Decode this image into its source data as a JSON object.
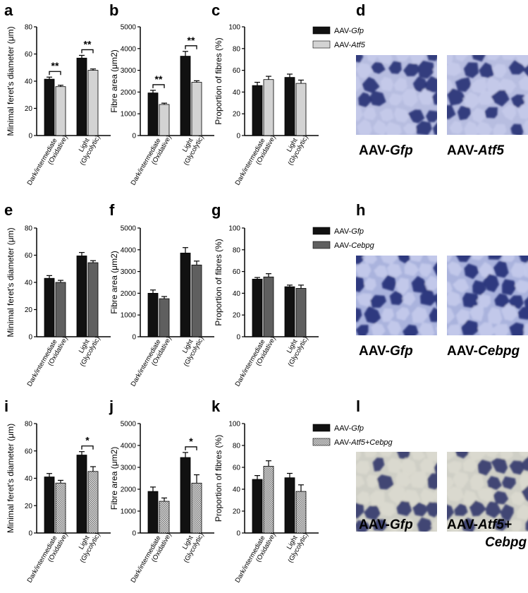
{
  "panel_letters": [
    "a",
    "b",
    "c",
    "d",
    "e",
    "f",
    "g",
    "h",
    "i",
    "j",
    "k",
    "l"
  ],
  "colors": {
    "gfp": "#111111",
    "atf5": "#d3d3d3",
    "cebpg": "#5f5f5f",
    "combo_hatch": "#8a8a8a",
    "axis": "#000000"
  },
  "chart_data": [
    {
      "panel": "a",
      "type": "bar",
      "ylabel": "Minimal feret's diameter (μm)",
      "ylim": [
        0,
        80
      ],
      "yticks": [
        "0",
        "20",
        "40",
        "60",
        "80"
      ],
      "categories": [
        "Dark/intermediate (Oxidative)",
        "Light (Glycolytic)"
      ],
      "series": [
        {
          "name": "AAV-Gfp",
          "values": [
            41.5,
            57
          ],
          "errors": [
            1.5,
            2
          ]
        },
        {
          "name": "AAV-Atf5",
          "values": [
            36,
            48
          ],
          "errors": [
            1,
            1
          ]
        }
      ],
      "significance": [
        "**",
        "**"
      ]
    },
    {
      "panel": "b",
      "type": "bar",
      "ylabel": "Fibre area (μm2)",
      "ylim": [
        0,
        5000
      ],
      "yticks": [
        "0",
        "1000",
        "2000",
        "3000",
        "4000",
        "5000"
      ],
      "categories": [
        "Dark/intermediate (Oxidative)",
        "Light (Glycolytic)"
      ],
      "series": [
        {
          "name": "AAV-Gfp",
          "values": [
            1960,
            3650
          ],
          "errors": [
            120,
            220
          ]
        },
        {
          "name": "AAV-Atf5",
          "values": [
            1430,
            2450
          ],
          "errors": [
            60,
            70
          ]
        }
      ],
      "significance": [
        "**",
        "**"
      ]
    },
    {
      "panel": "c",
      "type": "bar",
      "ylabel": "Proportion of fibres (%)",
      "ylim": [
        0,
        100
      ],
      "yticks": [
        "0",
        "20",
        "40",
        "60",
        "80",
        "100"
      ],
      "categories": [
        "Dark/intermediate (Oxidative)",
        "Light (Glycolytic)"
      ],
      "series": [
        {
          "name": "AAV-Gfp",
          "values": [
            46,
            53.5
          ],
          "errors": [
            3,
            3
          ]
        },
        {
          "name": "AAV-Atf5",
          "values": [
            51.5,
            48
          ],
          "errors": [
            3,
            3
          ]
        }
      ],
      "significance": [
        "",
        ""
      ]
    },
    {
      "panel": "e",
      "type": "bar",
      "ylabel": "Minimal feret's diameter (μm)",
      "ylim": [
        0,
        80
      ],
      "yticks": [
        "0",
        "20",
        "40",
        "60",
        "80"
      ],
      "categories": [
        "Dark/intermediate (Oxidative)",
        "Light (Glycolytic)"
      ],
      "series": [
        {
          "name": "AAV-Gfp",
          "values": [
            43,
            59.5
          ],
          "errors": [
            2,
            2.5
          ]
        },
        {
          "name": "AAV-Cebpg",
          "values": [
            40,
            54.5
          ],
          "errors": [
            1.5,
            1.5
          ]
        }
      ],
      "significance": [
        "",
        ""
      ]
    },
    {
      "panel": "f",
      "type": "bar",
      "ylabel": "Fibre area (μm2)",
      "ylim": [
        0,
        5000
      ],
      "yticks": [
        "0",
        "1000",
        "2000",
        "3000",
        "4000",
        "5000"
      ],
      "categories": [
        "Dark/intermediate (Oxidative)",
        "Light (Glycolytic)"
      ],
      "series": [
        {
          "name": "AAV-Gfp",
          "values": [
            2000,
            3850
          ],
          "errors": [
            150,
            250
          ]
        },
        {
          "name": "AAV-Cebpg",
          "values": [
            1750,
            3300
          ],
          "errors": [
            100,
            180
          ]
        }
      ],
      "significance": [
        "",
        ""
      ]
    },
    {
      "panel": "g",
      "type": "bar",
      "ylabel": "Proportion of fibres (%)",
      "ylim": [
        0,
        100
      ],
      "yticks": [
        "0",
        "20",
        "40",
        "60",
        "80",
        "100"
      ],
      "categories": [
        "Dark/intermediate (Oxidative)",
        "Light (Glycolytic)"
      ],
      "series": [
        {
          "name": "AAV-Gfp",
          "values": [
            53,
            46
          ],
          "errors": [
            1.5,
            1.5
          ]
        },
        {
          "name": "AAV-Cebpg",
          "values": [
            55,
            44.5
          ],
          "errors": [
            3,
            3
          ]
        }
      ],
      "significance": [
        "",
        ""
      ]
    },
    {
      "panel": "i",
      "type": "bar",
      "ylabel": "Minimal feret's diameter (μm)",
      "ylim": [
        0,
        80
      ],
      "yticks": [
        "0",
        "20",
        "40",
        "60",
        "80"
      ],
      "categories": [
        "Dark/intermediate (Oxidative)",
        "Light (Glycolytic)"
      ],
      "series": [
        {
          "name": "AAV-Gfp",
          "values": [
            41,
            57
          ],
          "errors": [
            2.5,
            2.5
          ]
        },
        {
          "name": "AAV-Atf5+Cebpg",
          "values": [
            36.5,
            45
          ],
          "errors": [
            2,
            3.5
          ]
        }
      ],
      "significance": [
        "",
        "*"
      ]
    },
    {
      "panel": "j",
      "type": "bar",
      "ylabel": "Fibre area (μm2)",
      "ylim": [
        0,
        5000
      ],
      "yticks": [
        "0",
        "1000",
        "2000",
        "3000",
        "4000",
        "5000"
      ],
      "categories": [
        "Dark/intermediate (Oxidative)",
        "Light (Glycolytic)"
      ],
      "series": [
        {
          "name": "AAV-Gfp",
          "values": [
            1900,
            3450
          ],
          "errors": [
            200,
            230
          ]
        },
        {
          "name": "AAV-Atf5+Cebpg",
          "values": [
            1450,
            2280
          ],
          "errors": [
            150,
            380
          ]
        }
      ],
      "significance": [
        "",
        "*"
      ]
    },
    {
      "panel": "k",
      "type": "bar",
      "ylabel": "Proportion of fibres (%)",
      "ylim": [
        0,
        100
      ],
      "yticks": [
        "0",
        "20",
        "40",
        "60",
        "80",
        "100"
      ],
      "categories": [
        "Dark/intermediate (Oxidative)",
        "Light (Glycolytic)"
      ],
      "series": [
        {
          "name": "AAV-Gfp",
          "values": [
            49,
            50.5
          ],
          "errors": [
            3.5,
            4
          ]
        },
        {
          "name": "AAV-Atf5+Cebpg",
          "values": [
            61,
            38
          ],
          "errors": [
            5,
            6
          ]
        }
      ],
      "significance": [
        "",
        ""
      ]
    }
  ],
  "legends": [
    {
      "items": [
        {
          "prefix": "AAV-",
          "gene": "Gfp"
        },
        {
          "prefix": "AAV-",
          "gene": "Atf5"
        }
      ]
    },
    {
      "items": [
        {
          "prefix": "AAV-",
          "gene": "Gfp"
        },
        {
          "prefix": "AAV-",
          "gene": "Cebpg"
        }
      ]
    },
    {
      "items": [
        {
          "prefix": "AAV-",
          "gene": "Gfp"
        },
        {
          "prefix": "AAV-",
          "gene": "Atf5+Cebpg"
        }
      ]
    }
  ],
  "micrographs": [
    {
      "panel": "d",
      "left": {
        "prefix": "AAV-",
        "gene": "Gfp"
      },
      "right": {
        "prefix": "AAV-",
        "gene": "Atf5"
      }
    },
    {
      "panel": "h",
      "left": {
        "prefix": "AAV-",
        "gene": "Gfp"
      },
      "right": {
        "prefix": "AAV-",
        "gene": "Cebpg"
      }
    },
    {
      "panel": "l",
      "left": {
        "prefix": "AAV-",
        "gene": "Gfp"
      },
      "right": {
        "prefix": "AAV-",
        "gene": "Atf5+",
        "gene_line2": "Cebpg"
      }
    }
  ]
}
